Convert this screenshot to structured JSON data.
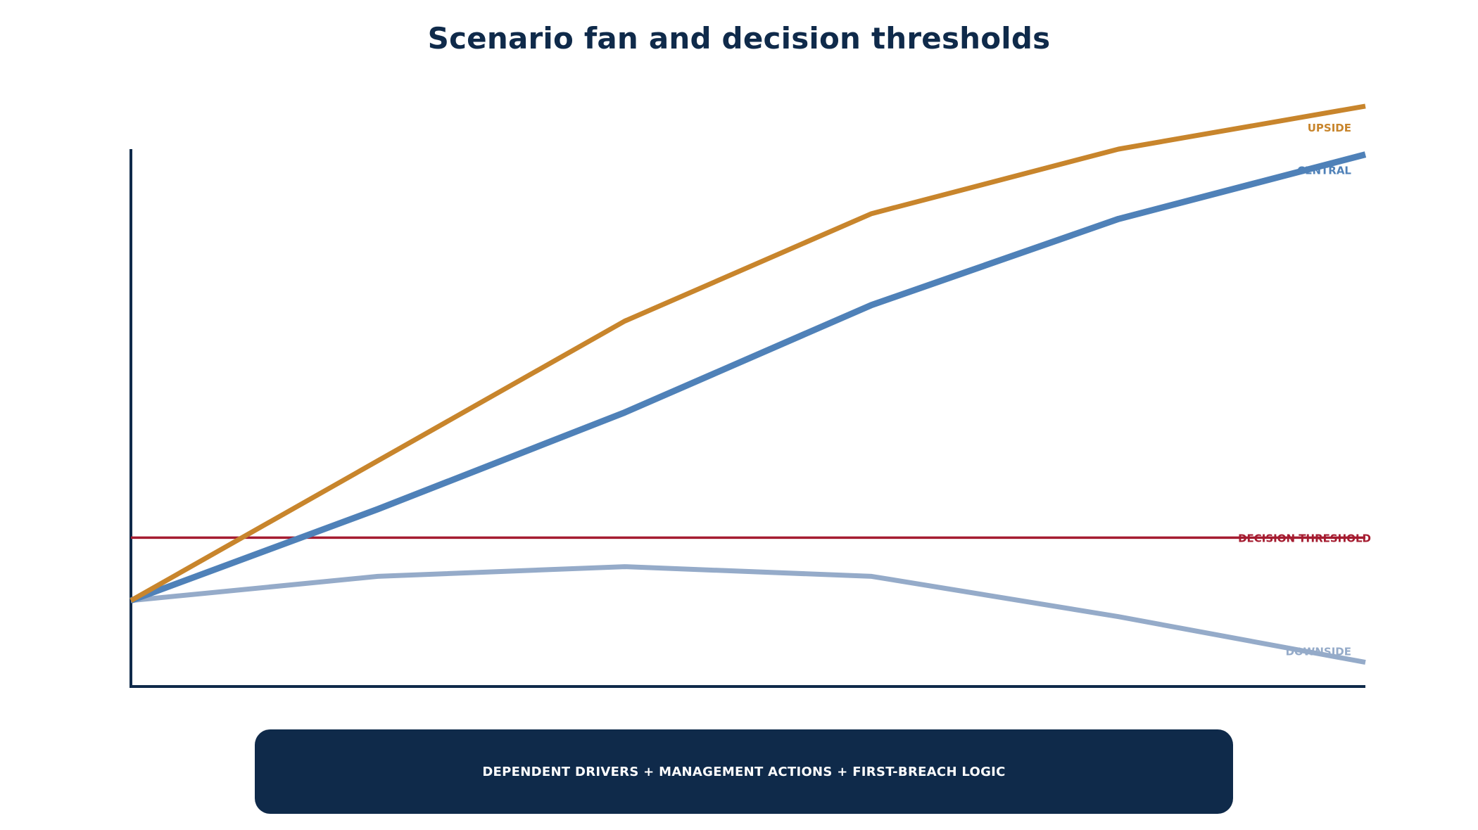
{
  "title": "Scenario fan and decision thresholds",
  "banner": {
    "text": "DEPENDENT DRIVERS + MANAGEMENT ACTIONS + FIRST-BREACH LOGIC"
  },
  "colors": {
    "upside": "#c8852c",
    "central": "#4f81b8",
    "downside": "#95abc9",
    "threshold": "#a51c30",
    "axis": "#0f2a4a"
  },
  "chart_data": {
    "type": "line",
    "x": [
      0,
      1,
      2,
      3,
      4,
      5
    ],
    "ylim": [
      0,
      100
    ],
    "grid": false,
    "series": [
      {
        "name": "UPSIDE",
        "values": [
          16,
          42,
          68,
          88,
          100,
          108
        ]
      },
      {
        "name": "CENTRAL",
        "values": [
          16,
          33,
          51,
          71,
          87,
          99
        ]
      },
      {
        "name": "DOWNSIDE",
        "values": [
          16,
          20.5,
          22.3,
          20.5,
          13,
          4.5
        ]
      }
    ],
    "thresholds": [
      {
        "name": "DECISION THRESHOLD",
        "value": 27.7
      }
    ]
  }
}
